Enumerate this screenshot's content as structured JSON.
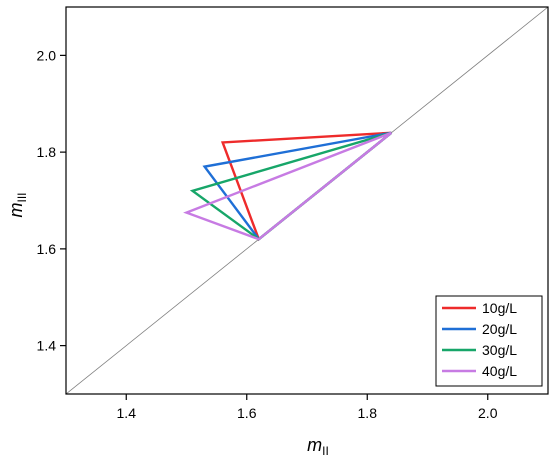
{
  "chart_data": {
    "type": "line",
    "title": "",
    "xlabel": "m",
    "xlabel_sub": "II",
    "ylabel": "m",
    "ylabel_sub": "III",
    "xlim": [
      1.3,
      2.1
    ],
    "ylim": [
      1.3,
      2.1
    ],
    "xticks": [
      "1.4",
      "1.6",
      "1.8",
      "2.0"
    ],
    "xtick_values": [
      1.4,
      1.6,
      1.8,
      2.0
    ],
    "yticks": [
      "1.4",
      "1.6",
      "1.8",
      "2.0"
    ],
    "ytick_values": [
      1.4,
      1.6,
      1.8,
      2.0
    ],
    "grid": false,
    "legend_position": "bottom-right",
    "reference_line": {
      "style": "diagonal y = x",
      "color": "#808080",
      "points": [
        [
          1.3,
          1.3
        ],
        [
          2.1,
          2.1
        ]
      ]
    },
    "series": [
      {
        "name": "10g/L",
        "color": "#ee2b2b",
        "x": [
          1.84,
          1.56,
          1.62,
          1.84
        ],
        "y": [
          1.84,
          1.82,
          1.62,
          1.84
        ]
      },
      {
        "name": "20g/L",
        "color": "#1f6fd6",
        "x": [
          1.84,
          1.53,
          1.62,
          1.84
        ],
        "y": [
          1.84,
          1.77,
          1.62,
          1.84
        ]
      },
      {
        "name": "30g/L",
        "color": "#17a669",
        "x": [
          1.84,
          1.51,
          1.62,
          1.84
        ],
        "y": [
          1.84,
          1.72,
          1.62,
          1.84
        ]
      },
      {
        "name": "40g/L",
        "color": "#c77be3",
        "x": [
          1.84,
          1.5,
          1.62,
          1.84
        ],
        "y": [
          1.84,
          1.675,
          1.62,
          1.84
        ]
      }
    ]
  }
}
